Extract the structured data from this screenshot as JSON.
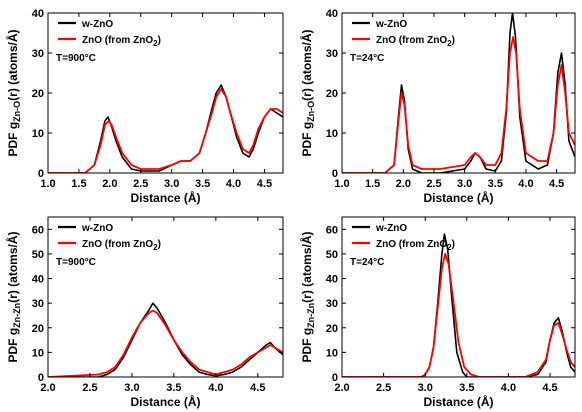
{
  "chart_data": [
    {
      "type": "line",
      "panel": "top-left",
      "xlabel": "Distance (Å)",
      "ylabel_main": "PDF g",
      "ylabel_sub": "Zn-O",
      "ylabel_tail": "(r) (atoms/Å)",
      "xlim": [
        1.0,
        4.8
      ],
      "ylim": [
        0,
        40
      ],
      "xticks": [
        1.0,
        1.5,
        2.0,
        2.5,
        3.0,
        3.5,
        4.0,
        4.5
      ],
      "xtick_labels": [
        "1.0",
        "1.5",
        "2.0",
        "2.5",
        "3.0",
        "3.5",
        "4.0",
        "4.5"
      ],
      "yticks": [
        0,
        10,
        20,
        30,
        40
      ],
      "ytick_labels": [
        "0",
        "10",
        "20",
        "30",
        "40"
      ],
      "annotation": "T=900°C",
      "legend_position": "top-left",
      "series": [
        {
          "name": "w-ZnO",
          "color": "#000000",
          "x": [
            1.0,
            1.6,
            1.75,
            1.85,
            1.92,
            1.97,
            2.02,
            2.1,
            2.2,
            2.35,
            2.5,
            2.8,
            3.0,
            3.15,
            3.3,
            3.45,
            3.55,
            3.65,
            3.72,
            3.8,
            3.88,
            3.95,
            4.05,
            4.15,
            4.25,
            4.32,
            4.4,
            4.5,
            4.6,
            4.7,
            4.8
          ],
          "y": [
            0,
            0,
            2,
            8,
            13,
            14,
            12,
            8,
            4,
            1,
            0.5,
            0.5,
            2,
            3,
            3,
            5,
            10,
            16,
            20,
            22,
            19,
            15,
            9,
            5,
            4,
            6,
            10,
            14,
            16,
            15,
            14
          ]
        },
        {
          "name": "ZnO (from ZnO",
          "color": "#ff0000",
          "x": [
            1.0,
            1.6,
            1.75,
            1.85,
            1.92,
            1.98,
            2.03,
            2.1,
            2.2,
            2.35,
            2.5,
            2.8,
            3.0,
            3.15,
            3.3,
            3.45,
            3.55,
            3.65,
            3.72,
            3.8,
            3.88,
            3.95,
            4.05,
            4.15,
            4.25,
            4.32,
            4.4,
            4.5,
            4.6,
            4.7,
            4.8
          ],
          "y": [
            0,
            0,
            2,
            7,
            12,
            13,
            12,
            9,
            5,
            2,
            1,
            1,
            2,
            3,
            3,
            5,
            10,
            15,
            19,
            21,
            19,
            15,
            10,
            6,
            5,
            7,
            11,
            14,
            16,
            16,
            15
          ]
        }
      ]
    },
    {
      "type": "line",
      "panel": "top-right",
      "xlabel": "Distance (Å)",
      "ylabel_main": "PDF g",
      "ylabel_sub": "Zn-O",
      "ylabel_tail": "(r) (atoms/Å)",
      "xlim": [
        1.0,
        4.8
      ],
      "ylim": [
        0,
        40
      ],
      "xticks": [
        1.0,
        1.5,
        2.0,
        2.5,
        3.0,
        3.5,
        4.0,
        4.5
      ],
      "xtick_labels": [
        "1.0",
        "1.5",
        "2.0",
        "2.5",
        "3.0",
        "3.5",
        "4.0",
        "4.5"
      ],
      "yticks": [
        0,
        10,
        20,
        30,
        40
      ],
      "ytick_labels": [
        "0",
        "10",
        "20",
        "30",
        "40"
      ],
      "annotation": "T=24°C",
      "legend_position": "top-left",
      "series": [
        {
          "name": "w-ZnO",
          "color": "#000000",
          "x": [
            1.0,
            1.7,
            1.85,
            1.92,
            1.97,
            2.02,
            2.08,
            2.15,
            2.3,
            2.6,
            3.0,
            3.1,
            3.17,
            3.25,
            3.35,
            3.5,
            3.6,
            3.68,
            3.74,
            3.78,
            3.83,
            3.9,
            4.0,
            4.2,
            4.35,
            4.45,
            4.52,
            4.58,
            4.64,
            4.7,
            4.8
          ],
          "y": [
            0,
            0,
            2,
            14,
            22,
            18,
            6,
            1,
            0,
            0,
            1,
            3,
            5,
            4,
            1,
            0.5,
            3,
            15,
            35,
            40,
            34,
            14,
            3,
            1,
            2,
            10,
            25,
            30,
            22,
            8,
            4
          ]
        },
        {
          "name": "ZnO (from ZnO",
          "color": "#ff0000",
          "x": [
            1.0,
            1.7,
            1.85,
            1.92,
            1.97,
            2.02,
            2.08,
            2.15,
            2.3,
            2.6,
            3.0,
            3.1,
            3.17,
            3.25,
            3.35,
            3.5,
            3.6,
            3.68,
            3.74,
            3.79,
            3.84,
            3.9,
            4.0,
            4.2,
            4.35,
            4.45,
            4.52,
            4.58,
            4.64,
            4.7,
            4.8
          ],
          "y": [
            0,
            0,
            2,
            13,
            20,
            17,
            7,
            2,
            1,
            1,
            2,
            4,
            5,
            4,
            2,
            2,
            5,
            16,
            30,
            34,
            30,
            16,
            5,
            3,
            3,
            10,
            22,
            27,
            20,
            10,
            7
          ]
        }
      ]
    },
    {
      "type": "line",
      "panel": "bottom-left",
      "xlabel": "Distance (Å)",
      "ylabel_main": "PDF g",
      "ylabel_sub": "Zn-Zn",
      "ylabel_tail": "(r) (atoms/Å)",
      "xlim": [
        2.0,
        4.8
      ],
      "ylim": [
        0,
        65
      ],
      "xticks": [
        2.0,
        2.5,
        3.0,
        3.5,
        4.0,
        4.5
      ],
      "xtick_labels": [
        "2.0",
        "2.5",
        "3.0",
        "3.5",
        "4.0",
        "4.5"
      ],
      "yticks": [
        0,
        10,
        20,
        30,
        40,
        50,
        60
      ],
      "ytick_labels": [
        "0",
        "10",
        "20",
        "30",
        "40",
        "50",
        "60"
      ],
      "annotation": "T=900°C",
      "legend_position": "top-left",
      "series": [
        {
          "name": "w-ZnO",
          "color": "#000000",
          "x": [
            2.0,
            2.6,
            2.7,
            2.8,
            2.9,
            3.0,
            3.1,
            3.2,
            3.25,
            3.3,
            3.4,
            3.5,
            3.6,
            3.7,
            3.8,
            3.9,
            4.0,
            4.1,
            4.2,
            4.3,
            4.4,
            4.5,
            4.6,
            4.65,
            4.7,
            4.8
          ],
          "y": [
            0,
            0,
            1,
            3,
            8,
            15,
            22,
            27,
            30,
            28,
            22,
            15,
            9,
            5,
            2,
            1,
            0.5,
            1,
            2,
            4,
            7,
            10,
            13,
            14,
            12,
            9
          ]
        },
        {
          "name": "ZnO (from ZnO",
          "color": "#ff0000",
          "x": [
            2.0,
            2.6,
            2.7,
            2.8,
            2.9,
            3.0,
            3.1,
            3.2,
            3.25,
            3.3,
            3.4,
            3.5,
            3.6,
            3.7,
            3.8,
            3.9,
            4.0,
            4.1,
            4.2,
            4.3,
            4.4,
            4.5,
            4.6,
            4.65,
            4.7,
            4.8
          ],
          "y": [
            0,
            1,
            2,
            4,
            9,
            16,
            22,
            26,
            27,
            26,
            21,
            15,
            10,
            6,
            3,
            2,
            1,
            2,
            3,
            5,
            8,
            10,
            12,
            13,
            12,
            10
          ]
        }
      ]
    },
    {
      "type": "line",
      "panel": "bottom-right",
      "xlabel": "Distance (Å)",
      "ylabel_main": "PDF g",
      "ylabel_sub": "Zn-Zn",
      "ylabel_tail": "(r) (atoms/Å)",
      "xlim": [
        2.0,
        4.8
      ],
      "ylim": [
        0,
        65
      ],
      "xticks": [
        2.0,
        2.5,
        3.0,
        3.5,
        4.0,
        4.5
      ],
      "xtick_labels": [
        "2.0",
        "2.5",
        "3.0",
        "3.5",
        "4.0",
        "4.5"
      ],
      "yticks": [
        0,
        10,
        20,
        30,
        40,
        50,
        60
      ],
      "ytick_labels": [
        "0",
        "10",
        "20",
        "30",
        "40",
        "50",
        "60"
      ],
      "annotation": "T=24°C",
      "legend_position": "top-left",
      "series": [
        {
          "name": "w-ZnO",
          "color": "#000000",
          "x": [
            2.0,
            2.95,
            3.0,
            3.05,
            3.1,
            3.15,
            3.2,
            3.23,
            3.27,
            3.32,
            3.38,
            3.45,
            3.5,
            3.6,
            4.2,
            4.35,
            4.45,
            4.5,
            4.55,
            4.6,
            4.65,
            4.7,
            4.75,
            4.8
          ],
          "y": [
            0,
            0,
            1,
            4,
            12,
            30,
            50,
            58,
            52,
            32,
            10,
            2,
            0,
            0,
            0,
            1,
            6,
            15,
            22,
            24,
            18,
            10,
            4,
            2
          ]
        },
        {
          "name": "ZnO (from ZnO",
          "color": "#ff0000",
          "x": [
            2.0,
            2.95,
            3.0,
            3.05,
            3.1,
            3.15,
            3.2,
            3.24,
            3.28,
            3.33,
            3.4,
            3.47,
            3.55,
            3.65,
            4.2,
            4.35,
            4.45,
            4.5,
            4.55,
            4.6,
            4.65,
            4.7,
            4.75,
            4.8
          ],
          "y": [
            0,
            0,
            1,
            4,
            12,
            28,
            44,
            50,
            46,
            33,
            14,
            4,
            1,
            0,
            0,
            2,
            7,
            15,
            21,
            22,
            17,
            11,
            6,
            4
          ]
        }
      ]
    }
  ],
  "legend_subscript": "2",
  "legend_close": ")"
}
